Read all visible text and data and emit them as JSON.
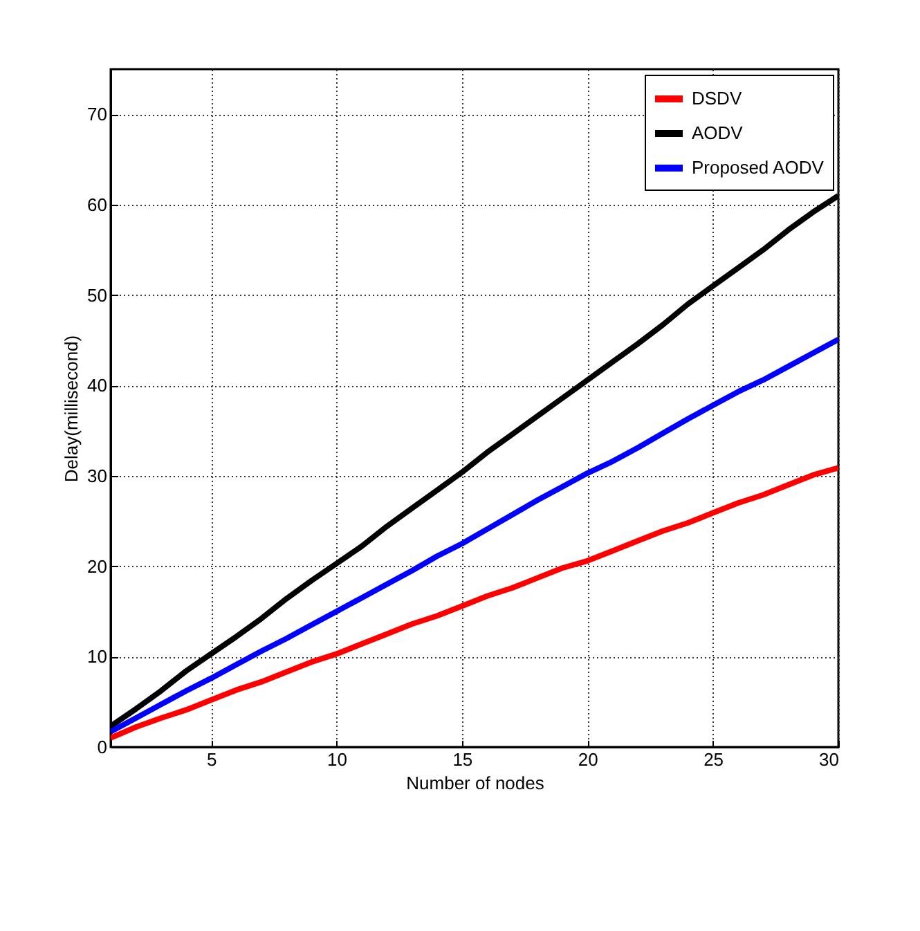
{
  "chart_data": {
    "type": "line",
    "xlabel": "Number of nodes",
    "ylabel": "Delay(millisecond)",
    "x": [
      1,
      2,
      3,
      4,
      5,
      6,
      7,
      8,
      9,
      10,
      11,
      12,
      13,
      14,
      15,
      16,
      17,
      18,
      19,
      20,
      21,
      22,
      23,
      24,
      25,
      26,
      27,
      28,
      29,
      30
    ],
    "series": [
      {
        "name": "DSDV",
        "color": "#ff0000",
        "values": [
          1,
          2.2,
          3.2,
          4.1,
          5.2,
          6.3,
          7.2,
          8.3,
          9.4,
          10.3,
          11.4,
          12.5,
          13.6,
          14.5,
          15.6,
          16.7,
          17.6,
          18.7,
          19.8,
          20.6,
          21.7,
          22.8,
          23.9,
          24.8,
          25.9,
          27,
          27.9,
          29,
          30.1,
          30.9
        ]
      },
      {
        "name": "AODV",
        "color": "#000000",
        "values": [
          2.3,
          4.2,
          6.2,
          8.4,
          10.3,
          12.2,
          14.2,
          16.4,
          18.4,
          20.3,
          22.2,
          24.4,
          26.4,
          28.4,
          30.4,
          32.6,
          34.6,
          36.6,
          38.6,
          40.6,
          42.6,
          44.6,
          46.7,
          49,
          51,
          53,
          55,
          57.2,
          59.2,
          61
        ]
      },
      {
        "name": "Proposed AODV",
        "color": "#0000ff",
        "values": [
          1.7,
          3.2,
          4.7,
          6.2,
          7.6,
          9.1,
          10.6,
          12,
          13.5,
          15,
          16.5,
          18,
          19.5,
          21.1,
          22.5,
          24.1,
          25.7,
          27.3,
          28.8,
          30.3,
          31.6,
          33.1,
          34.7,
          36.3,
          37.8,
          39.3,
          40.6,
          42.1,
          43.6,
          45.1
        ]
      }
    ],
    "xlim": [
      1,
      30
    ],
    "xticks": [
      5,
      10,
      15,
      20,
      25,
      30
    ],
    "ylim": [
      0,
      75
    ],
    "yticks": [
      0,
      10,
      20,
      30,
      40,
      50,
      60,
      70
    ],
    "grid": true,
    "legend": "top right",
    "line_style": "solid",
    "marker": "none"
  }
}
